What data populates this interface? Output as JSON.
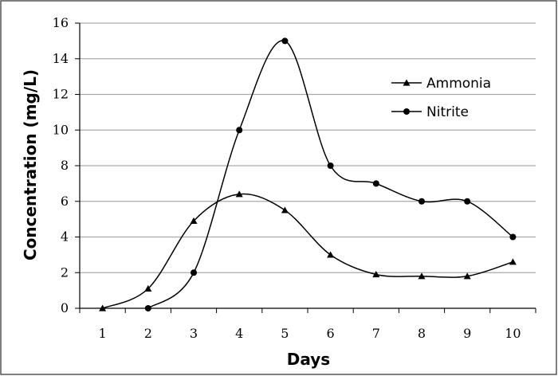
{
  "chart_data": {
    "type": "line",
    "title": "",
    "xlabel": "Days",
    "ylabel": "Concentration (mg/L)",
    "x": [
      1,
      2,
      3,
      4,
      5,
      6,
      7,
      8,
      9,
      10
    ],
    "xlim": [
      0.5,
      10.5
    ],
    "ylim": [
      0,
      16
    ],
    "yticks": [
      0,
      2,
      4,
      6,
      8,
      10,
      12,
      14,
      16
    ],
    "grid": "horizontal",
    "legend": "top-right",
    "series": [
      {
        "name": "Ammonia",
        "marker": "triangle",
        "x": [
          1,
          2,
          3,
          4,
          5,
          6,
          7,
          8,
          9,
          10
        ],
        "values": [
          0,
          1.1,
          4.9,
          6.4,
          5.5,
          3.0,
          1.9,
          1.8,
          1.8,
          2.6
        ]
      },
      {
        "name": "Nitrite",
        "marker": "circle",
        "x": [
          2,
          3,
          4,
          5,
          6,
          7,
          8,
          9,
          10
        ],
        "values": [
          0,
          2.0,
          10.0,
          15.0,
          8.0,
          7.0,
          6.0,
          6.0,
          4.0
        ]
      }
    ],
    "colors": {
      "line": "#000000",
      "grid": "#aaaaaa",
      "frame": "#555555"
    }
  }
}
